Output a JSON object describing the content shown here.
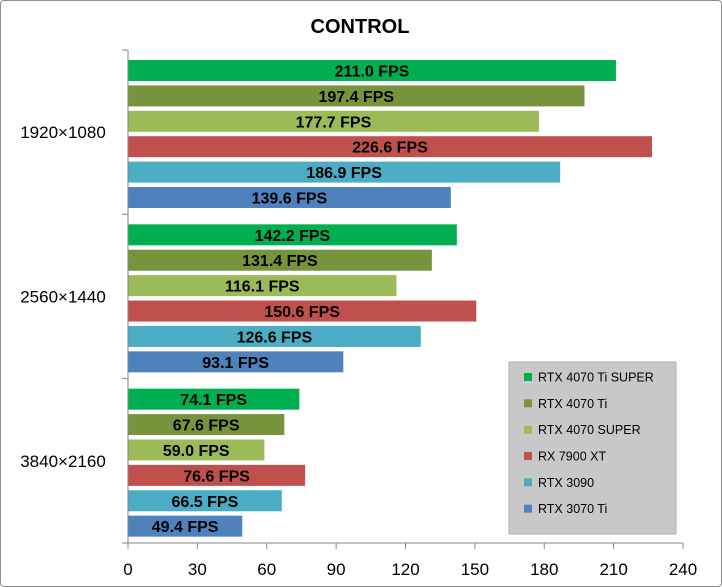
{
  "chart_data": {
    "type": "bar",
    "orientation": "horizontal",
    "title": "CONTROL",
    "categories": [
      "1920×1080",
      "2560×1440",
      "3840×2160"
    ],
    "series": [
      {
        "name": "RTX 4070 Ti SUPER",
        "color": "#00b050",
        "values": [
          211.0,
          142.2,
          74.1
        ],
        "labels": [
          "211.0 FPS",
          "142.2 FPS",
          "74.1 FPS"
        ]
      },
      {
        "name": "RTX 4070 Ti",
        "color": "#77933c",
        "values": [
          197.4,
          131.4,
          67.6
        ],
        "labels": [
          "197.4 FPS",
          "131.4 FPS",
          "67.6 FPS"
        ]
      },
      {
        "name": "RTX 4070 SUPER",
        "color": "#9bbb59",
        "values": [
          177.7,
          116.1,
          59.0
        ],
        "labels": [
          "177.7 FPS",
          "116.1 FPS",
          "59.0 FPS"
        ]
      },
      {
        "name": "RX 7900 XT",
        "color": "#c0504d",
        "values": [
          226.6,
          150.6,
          76.6
        ],
        "labels": [
          "226.6 FPS",
          "150.6 FPS",
          "76.6 FPS"
        ]
      },
      {
        "name": "RTX 3090",
        "color": "#4bacc6",
        "values": [
          186.9,
          126.6,
          66.5
        ],
        "labels": [
          "186.9 FPS",
          "126.6 FPS",
          "66.5 FPS"
        ]
      },
      {
        "name": "RTX 3070 Ti",
        "color": "#4f81bd",
        "values": [
          139.6,
          93.1,
          49.4
        ],
        "labels": [
          "139.6 FPS",
          "93.1 FPS",
          "49.4 FPS"
        ]
      }
    ],
    "xlim": [
      0,
      240
    ],
    "xticks": [
      "0",
      "30",
      "60",
      "90",
      "120",
      "150",
      "180",
      "210",
      "240"
    ],
    "xlabel": "",
    "ylabel": "",
    "grid": false,
    "legend": "bottom-right"
  }
}
